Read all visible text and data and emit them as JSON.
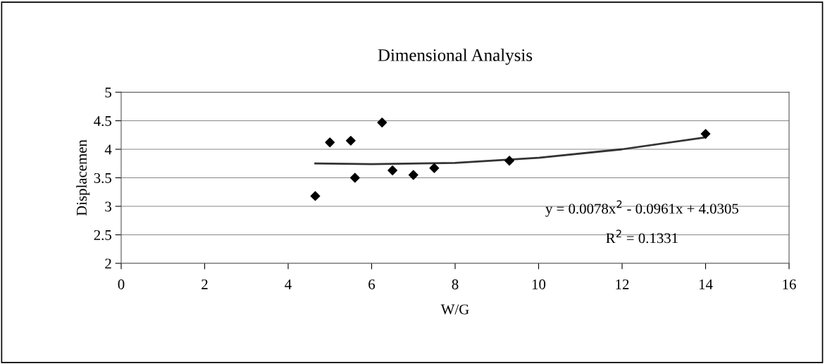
{
  "chart_data": {
    "type": "scatter",
    "title": "Dimensional Analysis",
    "xlabel": "W/G",
    "ylabel": "Displacemen",
    "series": [
      {
        "color": "#000000",
        "marker": "diamond",
        "x": [
          4.65,
          5.0,
          5.5,
          5.6,
          6.25,
          6.5,
          7.0,
          7.5,
          9.3,
          14.0
        ],
        "values": [
          3.18,
          4.12,
          4.15,
          3.5,
          4.47,
          3.63,
          3.55,
          3.67,
          3.8,
          4.27
        ]
      },
      {
        "type": "line",
        "color": "#333333",
        "line_style": "solid",
        "x": [
          4.65,
          6,
          8,
          10,
          12,
          14
        ],
        "values": [
          3.75,
          3.74,
          3.76,
          3.85,
          4.0,
          4.21
        ]
      }
    ],
    "annotations": [
      "y = 0.0078x$^{2}$ - 0.0961x + 4.0305",
      "R$^{2}$ = 0.1331"
    ],
    "xlim": [
      0,
      16
    ],
    "xticks": [
      0,
      2,
      4,
      6,
      8,
      10,
      12,
      14,
      16
    ],
    "ylim": [
      2,
      5
    ],
    "yticks": [
      2,
      2.5,
      3,
      3.5,
      4,
      4.5,
      5
    ],
    "grid": "y",
    "legend": false
  }
}
